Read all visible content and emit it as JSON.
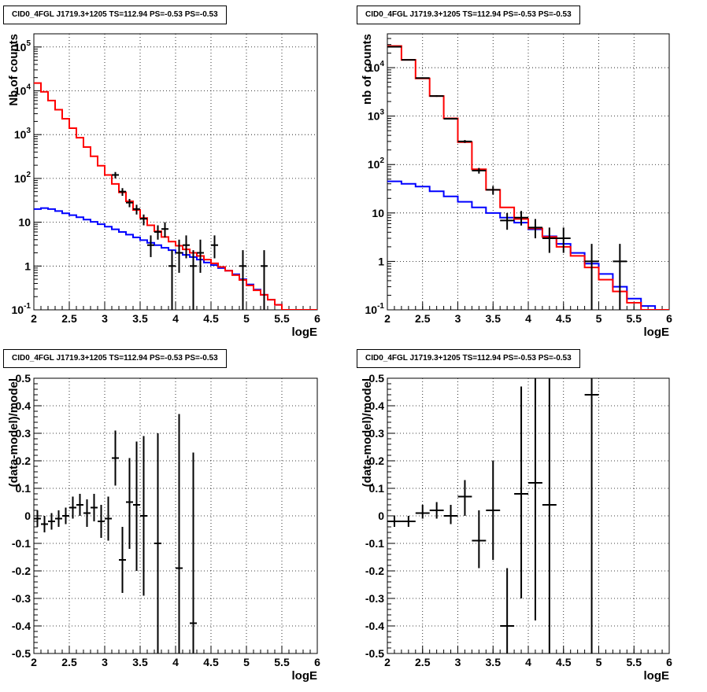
{
  "canvas_title": "CID0_4FGL J1719.3+1205 TS=112.94 PS=-0.53 PS=-0.53",
  "colors": {
    "data": "#000000",
    "total_model": "#ff0000",
    "source_model": "#0000ff",
    "grid": "#000000"
  },
  "chart_data": [
    {
      "type": "line",
      "title": "CID0_4FGL J1719.3+1205 TS=112.94 PS=-0.53 PS=-0.53",
      "xlabel": "logE",
      "ylabel": "Nb of counts",
      "xlim": [
        2,
        6
      ],
      "ylim": [
        0.1,
        200000
      ],
      "yscale": "log",
      "grid": true,
      "xticks": [
        "2",
        "2.5",
        "3",
        "3.5",
        "4",
        "4.5",
        "5",
        "5.5",
        "6"
      ],
      "yticks": [
        {
          "v": 0.1,
          "label": "10^-1"
        },
        {
          "v": 1,
          "label": "1"
        },
        {
          "v": 10,
          "label": "10"
        },
        {
          "v": 100,
          "label": "10^2"
        },
        {
          "v": 1000,
          "label": "10^3"
        },
        {
          "v": 10000,
          "label": "10^4"
        },
        {
          "v": 100000,
          "label": "10^5"
        }
      ],
      "step_width": 0.1,
      "series": [
        {
          "role": "total_model",
          "style": "step",
          "x": [
            2.0,
            2.1,
            2.2,
            2.3,
            2.4,
            2.5,
            2.6,
            2.7,
            2.8,
            2.9,
            3.0,
            3.1,
            3.2,
            3.3,
            3.4,
            3.5,
            3.6,
            3.7,
            3.8,
            3.9,
            4.0,
            4.1,
            4.2,
            4.3,
            4.4,
            4.5,
            4.6,
            4.7,
            4.8,
            4.9,
            5.0,
            5.1,
            5.2,
            5.3,
            5.4,
            5.5,
            5.6,
            5.7,
            5.8,
            5.9
          ],
          "values": [
            15000,
            9500,
            6000,
            3700,
            2300,
            1400,
            850,
            520,
            320,
            195,
            120,
            75,
            48,
            30,
            19,
            12.5,
            8.5,
            6.2,
            4.6,
            3.6,
            2.9,
            2.4,
            2.0,
            1.7,
            1.4,
            1.15,
            0.95,
            0.78,
            0.62,
            0.48,
            0.36,
            0.28,
            0.22,
            0.17,
            0.13,
            0.1,
            0.1,
            0.1,
            0.1,
            0.1
          ]
        },
        {
          "role": "source_model",
          "style": "step",
          "x": [
            2.0,
            2.1,
            2.2,
            2.3,
            2.4,
            2.5,
            2.6,
            2.7,
            2.8,
            2.9,
            3.0,
            3.1,
            3.2,
            3.3,
            3.4,
            3.5,
            3.6,
            3.7,
            3.8,
            3.9,
            4.0,
            4.1,
            4.2,
            4.3,
            4.4,
            4.5,
            4.6,
            4.7,
            4.8,
            4.9,
            5.0,
            5.1,
            5.2,
            5.3,
            5.4,
            5.5,
            5.6,
            5.7,
            5.8,
            5.9
          ],
          "values": [
            20,
            21,
            20,
            18,
            16,
            14.5,
            13,
            11.5,
            10.2,
            9,
            7.9,
            6.9,
            6.0,
            5.2,
            4.5,
            3.9,
            3.4,
            3.0,
            2.6,
            2.3,
            2.0,
            1.8,
            1.6,
            1.4,
            1.2,
            1.05,
            0.9,
            0.78,
            0.65,
            0.5,
            0.38,
            0.29,
            0.22,
            0.17,
            0.13,
            0.1,
            0.1,
            0.1,
            0.1,
            0.1
          ]
        },
        {
          "role": "data",
          "style": "errorbar",
          "points": [
            {
              "x": 3.15,
              "y": 120,
              "xe": 0.05,
              "lo": 100,
              "hi": 140
            },
            {
              "x": 3.25,
              "y": 50,
              "xe": 0.05,
              "lo": 40,
              "hi": 60
            },
            {
              "x": 3.35,
              "y": 28,
              "xe": 0.05,
              "lo": 22,
              "hi": 34
            },
            {
              "x": 3.45,
              "y": 20,
              "xe": 0.05,
              "lo": 15,
              "hi": 25
            },
            {
              "x": 3.55,
              "y": 12,
              "xe": 0.05,
              "lo": 8.5,
              "hi": 15
            },
            {
              "x": 3.65,
              "y": 3,
              "xe": 0.05,
              "lo": 1.6,
              "hi": 5
            },
            {
              "x": 3.75,
              "y": 6,
              "xe": 0.05,
              "lo": 4,
              "hi": 8.5
            },
            {
              "x": 3.85,
              "y": 7,
              "xe": 0.05,
              "lo": 4.5,
              "hi": 10
            },
            {
              "x": 3.95,
              "y": 1,
              "xe": 0.05,
              "lo": 0.1,
              "hi": 2.3
            },
            {
              "x": 4.05,
              "y": 2,
              "xe": 0.05,
              "lo": 0.7,
              "hi": 4
            },
            {
              "x": 4.15,
              "y": 3,
              "xe": 0.05,
              "lo": 1.5,
              "hi": 5
            },
            {
              "x": 4.25,
              "y": 1,
              "xe": 0.05,
              "lo": 0.1,
              "hi": 2.3
            },
            {
              "x": 4.35,
              "y": 2,
              "xe": 0.05,
              "lo": 0.7,
              "hi": 4
            },
            {
              "x": 4.55,
              "y": 3,
              "xe": 0.05,
              "lo": 1.5,
              "hi": 5
            },
            {
              "x": 4.95,
              "y": 1,
              "xe": 0.05,
              "lo": 0.1,
              "hi": 2.3
            },
            {
              "x": 5.25,
              "y": 1,
              "xe": 0.05,
              "lo": 0.1,
              "hi": 2.3
            }
          ]
        }
      ]
    },
    {
      "type": "line",
      "title": "CID0_4FGL J1719.3+1205 TS=112.94 PS=-0.53 PS=-0.53",
      "xlabel": "logE",
      "ylabel": "nb of counts",
      "xlim": [
        2,
        6
      ],
      "ylim": [
        0.1,
        50000
      ],
      "yscale": "log",
      "grid": true,
      "xticks": [
        "2",
        "2.5",
        "3",
        "3.5",
        "4",
        "4.5",
        "5",
        "5.5",
        "6"
      ],
      "yticks": [
        {
          "v": 0.1,
          "label": "10^-1"
        },
        {
          "v": 1,
          "label": "1"
        },
        {
          "v": 10,
          "label": "10"
        },
        {
          "v": 100,
          "label": "10^2"
        },
        {
          "v": 1000,
          "label": "10^3"
        },
        {
          "v": 10000,
          "label": "10^4"
        }
      ],
      "step_width": 0.2,
      "series": [
        {
          "role": "total_model",
          "style": "step",
          "x": [
            2.0,
            2.2,
            2.4,
            2.6,
            2.8,
            3.0,
            3.2,
            3.4,
            3.6,
            3.8,
            4.0,
            4.2,
            4.4,
            4.6,
            4.8,
            5.0,
            5.2,
            5.4,
            5.6,
            5.8
          ],
          "values": [
            28000,
            14500,
            6000,
            2600,
            900,
            290,
            80,
            30,
            13,
            7.5,
            4.8,
            3.2,
            2.0,
            1.3,
            0.75,
            0.42,
            0.24,
            0.14,
            0.1,
            0.1
          ]
        },
        {
          "role": "source_model",
          "style": "step",
          "x": [
            2.0,
            2.2,
            2.4,
            2.6,
            2.8,
            3.0,
            3.2,
            3.4,
            3.6,
            3.8,
            4.0,
            4.2,
            4.4,
            4.6,
            4.8,
            5.0,
            5.2,
            5.4,
            5.6,
            5.8
          ],
          "values": [
            45,
            40,
            35,
            28,
            22,
            17,
            13,
            10,
            8,
            6.3,
            4.6,
            3.3,
            2.3,
            1.5,
            0.9,
            0.55,
            0.3,
            0.17,
            0.12,
            0.1
          ]
        },
        {
          "role": "data",
          "style": "errorbar",
          "points": [
            {
              "x": 2.1,
              "y": 27000,
              "xe": 0.1,
              "lo": 26500,
              "hi": 27500
            },
            {
              "x": 2.3,
              "y": 14500,
              "xe": 0.1,
              "lo": 14200,
              "hi": 14800
            },
            {
              "x": 2.5,
              "y": 6100,
              "xe": 0.1,
              "lo": 5900,
              "hi": 6300
            },
            {
              "x": 2.7,
              "y": 2600,
              "xe": 0.1,
              "lo": 2500,
              "hi": 2700
            },
            {
              "x": 2.9,
              "y": 880,
              "xe": 0.1,
              "lo": 850,
              "hi": 910
            },
            {
              "x": 3.1,
              "y": 300,
              "xe": 0.1,
              "lo": 280,
              "hi": 320
            },
            {
              "x": 3.3,
              "y": 75,
              "xe": 0.1,
              "lo": 65,
              "hi": 85
            },
            {
              "x": 3.5,
              "y": 30,
              "xe": 0.1,
              "lo": 24,
              "hi": 36
            },
            {
              "x": 3.7,
              "y": 7,
              "xe": 0.1,
              "lo": 4.5,
              "hi": 10
            },
            {
              "x": 3.9,
              "y": 8,
              "xe": 0.1,
              "lo": 5.5,
              "hi": 11
            },
            {
              "x": 4.1,
              "y": 5,
              "xe": 0.1,
              "lo": 3,
              "hi": 7.5
            },
            {
              "x": 4.3,
              "y": 3,
              "xe": 0.1,
              "lo": 1.5,
              "hi": 5
            },
            {
              "x": 4.5,
              "y": 3,
              "xe": 0.1,
              "lo": 1.5,
              "hi": 5
            },
            {
              "x": 4.9,
              "y": 1,
              "xe": 0.1,
              "lo": 0.1,
              "hi": 2.3
            },
            {
              "x": 5.3,
              "y": 1,
              "xe": 0.1,
              "lo": 0.1,
              "hi": 2.3
            }
          ]
        }
      ]
    },
    {
      "type": "scatter",
      "title": "CID0_4FGL J1719.3+1205 TS=112.94 PS=-0.53 PS=-0.53",
      "xlabel": "logE",
      "ylabel": "(data-model)/model",
      "xlim": [
        2,
        6
      ],
      "ylim": [
        -0.5,
        0.5
      ],
      "yscale": "linear",
      "grid": true,
      "xticks": [
        "2",
        "2.5",
        "3",
        "3.5",
        "4",
        "4.5",
        "5",
        "5.5",
        "6"
      ],
      "yticks": [
        {
          "v": -0.5,
          "label": "-0.5"
        },
        {
          "v": -0.4,
          "label": "-0.4"
        },
        {
          "v": -0.3,
          "label": "-0.3"
        },
        {
          "v": -0.2,
          "label": "-0.2"
        },
        {
          "v": -0.1,
          "label": "-0.1"
        },
        {
          "v": 0,
          "label": "0"
        },
        {
          "v": 0.1,
          "label": "0.1"
        },
        {
          "v": 0.2,
          "label": "0.2"
        },
        {
          "v": 0.3,
          "label": "0.3"
        },
        {
          "v": 0.4,
          "label": "0.4"
        },
        {
          "v": 0.5,
          "label": "0.5"
        }
      ],
      "series": [
        {
          "role": "data",
          "style": "errorbar",
          "points": [
            {
              "x": 2.05,
              "y": -0.01,
              "xe": 0.05,
              "lo": -0.04,
              "hi": 0.02
            },
            {
              "x": 2.15,
              "y": -0.03,
              "xe": 0.05,
              "lo": -0.06,
              "hi": 0.0
            },
            {
              "x": 2.25,
              "y": -0.02,
              "xe": 0.05,
              "lo": -0.05,
              "hi": 0.01
            },
            {
              "x": 2.35,
              "y": -0.01,
              "xe": 0.05,
              "lo": -0.04,
              "hi": 0.02
            },
            {
              "x": 2.45,
              "y": 0.0,
              "xe": 0.05,
              "lo": -0.03,
              "hi": 0.03
            },
            {
              "x": 2.55,
              "y": 0.03,
              "xe": 0.05,
              "lo": -0.01,
              "hi": 0.07
            },
            {
              "x": 2.65,
              "y": 0.04,
              "xe": 0.05,
              "lo": 0.0,
              "hi": 0.08
            },
            {
              "x": 2.75,
              "y": 0.01,
              "xe": 0.05,
              "lo": -0.04,
              "hi": 0.06
            },
            {
              "x": 2.85,
              "y": 0.03,
              "xe": 0.05,
              "lo": -0.02,
              "hi": 0.08
            },
            {
              "x": 2.95,
              "y": -0.02,
              "xe": 0.05,
              "lo": -0.08,
              "hi": 0.04
            },
            {
              "x": 3.05,
              "y": -0.01,
              "xe": 0.05,
              "lo": -0.09,
              "hi": 0.07
            },
            {
              "x": 3.15,
              "y": 0.21,
              "xe": 0.05,
              "lo": 0.11,
              "hi": 0.31
            },
            {
              "x": 3.25,
              "y": -0.16,
              "xe": 0.05,
              "lo": -0.28,
              "hi": -0.04
            },
            {
              "x": 3.35,
              "y": 0.05,
              "xe": 0.05,
              "lo": -0.12,
              "hi": 0.21
            },
            {
              "x": 3.45,
              "y": 0.04,
              "xe": 0.05,
              "lo": -0.2,
              "hi": 0.27
            },
            {
              "x": 3.55,
              "y": 0.0,
              "xe": 0.05,
              "lo": -0.29,
              "hi": 0.29
            },
            {
              "x": 3.75,
              "y": -0.1,
              "xe": 0.05,
              "lo": -0.5,
              "hi": 0.3
            },
            {
              "x": 4.05,
              "y": -0.19,
              "xe": 0.05,
              "lo": -0.5,
              "hi": 0.37
            },
            {
              "x": 4.25,
              "y": -0.39,
              "xe": 0.05,
              "lo": -0.5,
              "hi": 0.23
            }
          ]
        }
      ]
    },
    {
      "type": "scatter",
      "title": "CID0_4FGL J1719.3+1205 TS=112.94 PS=-0.53 PS=-0.53",
      "xlabel": "logE",
      "ylabel": "(data-model)/model",
      "xlim": [
        2,
        6
      ],
      "ylim": [
        -0.5,
        0.5
      ],
      "yscale": "linear",
      "grid": true,
      "xticks": [
        "2",
        "2.5",
        "3",
        "3.5",
        "4",
        "4.5",
        "5",
        "5.5",
        "6"
      ],
      "yticks": [
        {
          "v": -0.5,
          "label": "-0.5"
        },
        {
          "v": -0.4,
          "label": "-0.4"
        },
        {
          "v": -0.3,
          "label": "-0.3"
        },
        {
          "v": -0.2,
          "label": "-0.2"
        },
        {
          "v": -0.1,
          "label": "-0.1"
        },
        {
          "v": 0,
          "label": "0"
        },
        {
          "v": 0.1,
          "label": "0.1"
        },
        {
          "v": 0.2,
          "label": "0.2"
        },
        {
          "v": 0.3,
          "label": "0.3"
        },
        {
          "v": 0.4,
          "label": "0.4"
        },
        {
          "v": 0.5,
          "label": "0.5"
        }
      ],
      "series": [
        {
          "role": "data",
          "style": "errorbar",
          "points": [
            {
              "x": 2.1,
              "y": -0.02,
              "xe": 0.1,
              "lo": -0.04,
              "hi": 0.0
            },
            {
              "x": 2.3,
              "y": -0.02,
              "xe": 0.1,
              "lo": -0.04,
              "hi": 0.0
            },
            {
              "x": 2.5,
              "y": 0.01,
              "xe": 0.1,
              "lo": -0.01,
              "hi": 0.04
            },
            {
              "x": 2.7,
              "y": 0.02,
              "xe": 0.1,
              "lo": -0.01,
              "hi": 0.05
            },
            {
              "x": 2.9,
              "y": 0.0,
              "xe": 0.1,
              "lo": -0.03,
              "hi": 0.04
            },
            {
              "x": 3.1,
              "y": 0.07,
              "xe": 0.1,
              "lo": 0.0,
              "hi": 0.13
            },
            {
              "x": 3.3,
              "y": -0.09,
              "xe": 0.1,
              "lo": -0.19,
              "hi": 0.02
            },
            {
              "x": 3.5,
              "y": 0.02,
              "xe": 0.1,
              "lo": -0.16,
              "hi": 0.2
            },
            {
              "x": 3.7,
              "y": -0.4,
              "xe": 0.1,
              "lo": -0.5,
              "hi": -0.19
            },
            {
              "x": 3.9,
              "y": 0.08,
              "xe": 0.1,
              "lo": -0.3,
              "hi": 0.47
            },
            {
              "x": 4.1,
              "y": 0.12,
              "xe": 0.1,
              "lo": -0.38,
              "hi": 0.5
            },
            {
              "x": 4.3,
              "y": 0.04,
              "xe": 0.1,
              "lo": -0.5,
              "hi": 0.5
            },
            {
              "x": 4.9,
              "y": 0.44,
              "xe": 0.1,
              "lo": -0.5,
              "hi": 0.5
            }
          ]
        }
      ]
    }
  ]
}
